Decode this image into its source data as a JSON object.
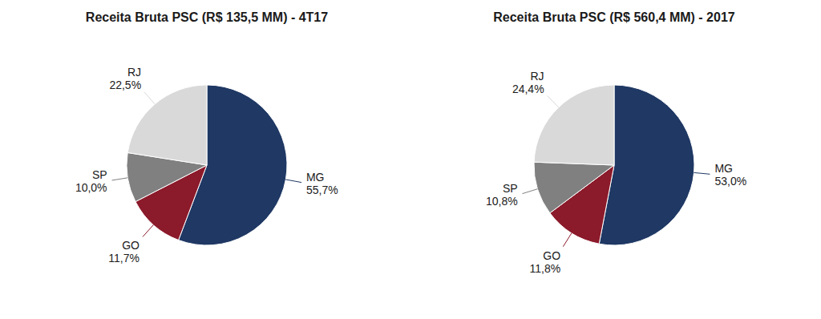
{
  "chart_data": [
    {
      "type": "pie",
      "title": "Receita Bruta PSC (R$ 135,5 MM) - 4T17",
      "categories": [
        "MG",
        "GO",
        "SP",
        "RJ"
      ],
      "values": [
        55.7,
        11.7,
        10.0,
        22.5
      ],
      "value_labels": [
        "55,7%",
        "11,7%",
        "10,0%",
        "22,5%"
      ],
      "colors": [
        "#1f3864",
        "#8b1a2a",
        "#808080",
        "#d9d9d9"
      ]
    },
    {
      "type": "pie",
      "title": "Receita Bruta PSC (R$ 560,4 MM) - 2017",
      "categories": [
        "MG",
        "GO",
        "SP",
        "RJ"
      ],
      "values": [
        53.0,
        11.8,
        10.8,
        24.4
      ],
      "value_labels": [
        "53,0%",
        "11,8%",
        "10,8%",
        "24,4%"
      ],
      "colors": [
        "#1f3864",
        "#8b1a2a",
        "#808080",
        "#d9d9d9"
      ]
    }
  ]
}
